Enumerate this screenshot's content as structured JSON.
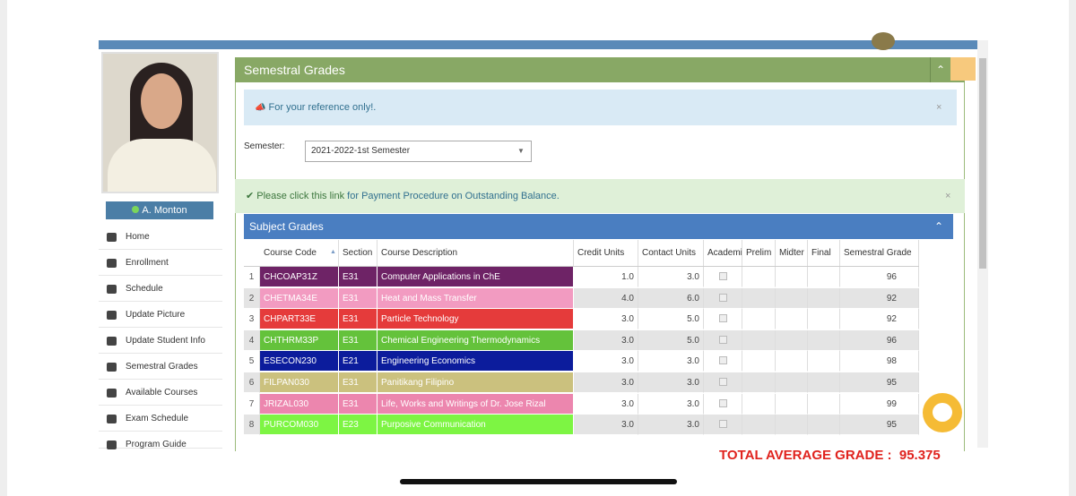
{
  "sidebar": {
    "user_name": "A. Monton",
    "menu": [
      "Home",
      "Enrollment",
      "Schedule",
      "Update Picture",
      "Update Student Info",
      "Semestral Grades",
      "Available Courses",
      "Exam Schedule",
      "Program Guide"
    ]
  },
  "panel": {
    "title": "Semestral Grades",
    "notice": "For your reference only!.",
    "semester_label": "Semester:",
    "semester_value": "2021-2022-1st Semester",
    "payment_prefix": "Please click this link",
    "payment_link": "for Payment Procedure on Outstanding Balance."
  },
  "table": {
    "title": "Subject Grades",
    "columns": [
      "Course Code",
      "Section",
      "Course Description",
      "Credit Units",
      "Contact Units",
      "Academi",
      "Prelim",
      "Midter",
      "Final",
      "Semestral Grade"
    ],
    "rows": [
      {
        "no": 1,
        "code": "CHCOAP31Z",
        "section": "E31",
        "description": "Computer Applications in ChE",
        "credit_units": "1.0",
        "contact_units": "3.0",
        "grade": 96,
        "color": "#6e2366"
      },
      {
        "no": 2,
        "code": "CHETMA34E",
        "section": "E31",
        "description": "Heat and Mass Transfer",
        "credit_units": "4.0",
        "contact_units": "6.0",
        "grade": 92,
        "color": "#f29bc1"
      },
      {
        "no": 3,
        "code": "CHPART33E",
        "section": "E31",
        "description": "Particle Technology",
        "credit_units": "3.0",
        "contact_units": "5.0",
        "grade": 92,
        "color": "#e53b3b"
      },
      {
        "no": 4,
        "code": "CHTHRM33P",
        "section": "E31",
        "description": "Chemical Engineering Thermodynamics",
        "credit_units": "3.0",
        "contact_units": "5.0",
        "grade": 96,
        "color": "#64c23b"
      },
      {
        "no": 5,
        "code": "ESECON230",
        "section": "E21",
        "description": "Engineering Economics",
        "credit_units": "3.0",
        "contact_units": "3.0",
        "grade": 98,
        "color": "#0c1c9c"
      },
      {
        "no": 6,
        "code": "FILPAN030",
        "section": "E31",
        "description": "Panitikang Filipino",
        "credit_units": "3.0",
        "contact_units": "3.0",
        "grade": 95,
        "color": "#cbc17e"
      },
      {
        "no": 7,
        "code": "JRIZAL030",
        "section": "E31",
        "description": "Life, Works and Writings of Dr. Jose Rizal",
        "credit_units": "3.0",
        "contact_units": "3.0",
        "grade": 99,
        "color": "#ec86ae"
      },
      {
        "no": 8,
        "code": "PURCOM030",
        "section": "E23",
        "description": "Purposive Communication",
        "credit_units": "3.0",
        "contact_units": "3.0",
        "grade": 95,
        "color": "#7df543"
      }
    ]
  },
  "total": {
    "label": "TOTAL AVERAGE GRADE :",
    "value": "95.375"
  }
}
